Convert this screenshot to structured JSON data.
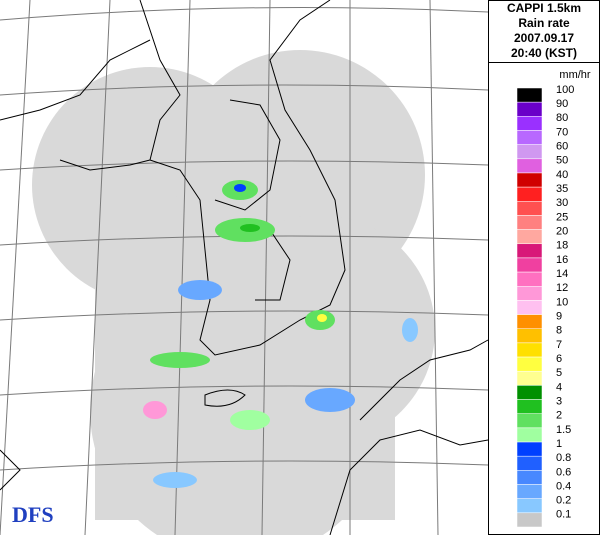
{
  "header": {
    "lines": [
      "CAPPI 1.5km",
      "Rain rate",
      "2007.09.17",
      "20:40 (KST)"
    ]
  },
  "legend": {
    "unit": "mm/hr",
    "items": [
      {
        "label": "100",
        "color": "#000000"
      },
      {
        "label": "90",
        "color": "#6a00c8"
      },
      {
        "label": "80",
        "color": "#9a30ff"
      },
      {
        "label": "70",
        "color": "#b868ff"
      },
      {
        "label": "60",
        "color": "#d098f0"
      },
      {
        "label": "50",
        "color": "#e060e0"
      },
      {
        "label": "40",
        "color": "#d00000"
      },
      {
        "label": "35",
        "color": "#ff2020"
      },
      {
        "label": "30",
        "color": "#ff5050"
      },
      {
        "label": "25",
        "color": "#ff8080"
      },
      {
        "label": "20",
        "color": "#ffa8a0"
      },
      {
        "label": "18",
        "color": "#d81878"
      },
      {
        "label": "16",
        "color": "#f040a0"
      },
      {
        "label": "14",
        "color": "#ff70c0"
      },
      {
        "label": "12",
        "color": "#ff98d8"
      },
      {
        "label": "10",
        "color": "#ffc0f0"
      },
      {
        "label": "9",
        "color": "#ff9000"
      },
      {
        "label": "8",
        "color": "#ffc000"
      },
      {
        "label": "7",
        "color": "#ffe000"
      },
      {
        "label": "6",
        "color": "#ffff40"
      },
      {
        "label": "5",
        "color": "#ffff90"
      },
      {
        "label": "4",
        "color": "#009000"
      },
      {
        "label": "3",
        "color": "#20c020"
      },
      {
        "label": "2",
        "color": "#60e060"
      },
      {
        "label": "1.5",
        "color": "#a0ffa0"
      },
      {
        "label": "1",
        "color": "#0040ff"
      },
      {
        "label": "0.8",
        "color": "#2060ff"
      },
      {
        "label": "0.6",
        "color": "#4888ff"
      },
      {
        "label": "0.4",
        "color": "#68a8ff"
      },
      {
        "label": "0.2",
        "color": "#88c8ff"
      },
      {
        "label": "0.1",
        "color": "#c8c8c8"
      }
    ]
  },
  "logo": "DFS"
}
